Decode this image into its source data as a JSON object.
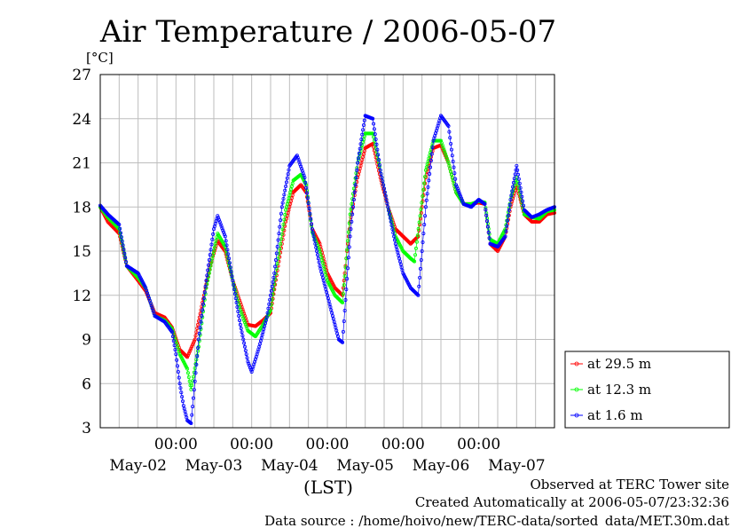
{
  "chart_data": {
    "type": "line",
    "title": "Air Temperature / 2006-05-07",
    "ylabel": "[°C]",
    "xlabel": "(LST)",
    "ylim": [
      3,
      27
    ],
    "yticks": [
      3,
      6,
      9,
      12,
      15,
      18,
      21,
      24,
      27
    ],
    "x_start_day": "May-02",
    "xlim_days": [
      0.0,
      6.0
    ],
    "time_tick_labels": [
      {
        "day": 1,
        "label": "00:00"
      },
      {
        "day": 2,
        "label": "00:00"
      },
      {
        "day": 3,
        "label": "00:00"
      },
      {
        "day": 4,
        "label": "00:00"
      },
      {
        "day": 5,
        "label": "00:00"
      }
    ],
    "date_labels": [
      {
        "day": 0.5,
        "label": "May-02"
      },
      {
        "day": 1.5,
        "label": "May-03"
      },
      {
        "day": 2.5,
        "label": "May-04"
      },
      {
        "day": 3.5,
        "label": "May-05"
      },
      {
        "day": 4.5,
        "label": "May-06"
      },
      {
        "day": 5.5,
        "label": "May-07"
      }
    ],
    "grid": true,
    "legend_position": "right",
    "series": [
      {
        "name": "at 29.5 m",
        "color": "#ff0000",
        "points": [
          [
            0.0,
            18.0
          ],
          [
            0.1,
            17.0
          ],
          [
            0.25,
            16.2
          ],
          [
            0.35,
            14.0
          ],
          [
            0.5,
            13.0
          ],
          [
            0.6,
            12.3
          ],
          [
            0.72,
            10.8
          ],
          [
            0.85,
            10.5
          ],
          [
            0.95,
            9.8
          ],
          [
            1.05,
            8.3
          ],
          [
            1.15,
            7.8
          ],
          [
            1.25,
            9.0
          ],
          [
            1.35,
            11.5
          ],
          [
            1.45,
            14.0
          ],
          [
            1.55,
            15.7
          ],
          [
            1.65,
            15.0
          ],
          [
            1.75,
            13.0
          ],
          [
            1.85,
            11.5
          ],
          [
            1.95,
            10.0
          ],
          [
            2.05,
            9.9
          ],
          [
            2.15,
            10.3
          ],
          [
            2.25,
            10.8
          ],
          [
            2.35,
            14.0
          ],
          [
            2.45,
            17.0
          ],
          [
            2.55,
            19.0
          ],
          [
            2.65,
            19.5
          ],
          [
            2.72,
            19.0
          ],
          [
            2.8,
            16.5
          ],
          [
            2.9,
            15.5
          ],
          [
            3.0,
            13.5
          ],
          [
            3.1,
            12.5
          ],
          [
            3.2,
            12.0
          ],
          [
            3.3,
            17.0
          ],
          [
            3.4,
            20.0
          ],
          [
            3.5,
            22.0
          ],
          [
            3.6,
            22.3
          ],
          [
            3.7,
            20.0
          ],
          [
            3.8,
            18.0
          ],
          [
            3.9,
            16.5
          ],
          [
            4.0,
            16.0
          ],
          [
            4.1,
            15.5
          ],
          [
            4.2,
            16.0
          ],
          [
            4.3,
            20.0
          ],
          [
            4.4,
            22.0
          ],
          [
            4.5,
            22.2
          ],
          [
            4.6,
            21.0
          ],
          [
            4.7,
            19.0
          ],
          [
            4.8,
            18.2
          ],
          [
            4.9,
            18.2
          ],
          [
            5.0,
            18.3
          ],
          [
            5.08,
            18.2
          ],
          [
            5.15,
            15.5
          ],
          [
            5.25,
            15.0
          ],
          [
            5.35,
            16.0
          ],
          [
            5.42,
            18.0
          ],
          [
            5.5,
            19.5
          ],
          [
            5.6,
            17.5
          ],
          [
            5.7,
            17.0
          ],
          [
            5.8,
            17.0
          ],
          [
            5.9,
            17.5
          ],
          [
            6.0,
            17.6
          ]
        ]
      },
      {
        "name": "at 12.3 m",
        "color": "#00ff00",
        "points": [
          [
            0.0,
            18.0
          ],
          [
            0.1,
            17.3
          ],
          [
            0.25,
            16.5
          ],
          [
            0.35,
            14.0
          ],
          [
            0.5,
            13.2
          ],
          [
            0.6,
            12.5
          ],
          [
            0.72,
            10.6
          ],
          [
            0.85,
            10.3
          ],
          [
            0.95,
            9.7
          ],
          [
            1.05,
            8.0
          ],
          [
            1.15,
            7.0
          ],
          [
            1.2,
            5.6
          ],
          [
            1.3,
            8.5
          ],
          [
            1.4,
            12.5
          ],
          [
            1.5,
            15.0
          ],
          [
            1.55,
            16.2
          ],
          [
            1.65,
            15.3
          ],
          [
            1.75,
            13.0
          ],
          [
            1.85,
            11.0
          ],
          [
            1.95,
            9.6
          ],
          [
            2.05,
            9.2
          ],
          [
            2.15,
            10.0
          ],
          [
            2.25,
            11.0
          ],
          [
            2.35,
            14.5
          ],
          [
            2.45,
            17.8
          ],
          [
            2.55,
            19.8
          ],
          [
            2.65,
            20.2
          ],
          [
            2.72,
            19.5
          ],
          [
            2.8,
            16.3
          ],
          [
            2.9,
            15.0
          ],
          [
            3.0,
            13.0
          ],
          [
            3.1,
            12.0
          ],
          [
            3.2,
            11.5
          ],
          [
            3.3,
            17.5
          ],
          [
            3.4,
            21.0
          ],
          [
            3.5,
            23.0
          ],
          [
            3.6,
            23.0
          ],
          [
            3.7,
            20.5
          ],
          [
            3.8,
            18.0
          ],
          [
            3.9,
            16.0
          ],
          [
            4.0,
            15.0
          ],
          [
            4.1,
            14.5
          ],
          [
            4.15,
            14.3
          ],
          [
            4.3,
            20.5
          ],
          [
            4.4,
            22.5
          ],
          [
            4.5,
            22.5
          ],
          [
            4.6,
            21.0
          ],
          [
            4.7,
            19.0
          ],
          [
            4.8,
            18.2
          ],
          [
            4.9,
            18.2
          ],
          [
            5.0,
            18.4
          ],
          [
            5.08,
            18.3
          ],
          [
            5.15,
            15.8
          ],
          [
            5.25,
            15.5
          ],
          [
            5.35,
            16.5
          ],
          [
            5.42,
            18.5
          ],
          [
            5.5,
            20.0
          ],
          [
            5.6,
            17.5
          ],
          [
            5.7,
            17.3
          ],
          [
            5.8,
            17.2
          ],
          [
            5.9,
            17.7
          ],
          [
            6.0,
            17.8
          ]
        ]
      },
      {
        "name": "at 1.6 m",
        "color": "#0000ff",
        "points": [
          [
            0.0,
            18.1
          ],
          [
            0.1,
            17.5
          ],
          [
            0.25,
            16.8
          ],
          [
            0.35,
            14.0
          ],
          [
            0.5,
            13.5
          ],
          [
            0.6,
            12.5
          ],
          [
            0.72,
            10.6
          ],
          [
            0.85,
            10.2
          ],
          [
            0.95,
            9.5
          ],
          [
            1.0,
            8.0
          ],
          [
            1.05,
            6.0
          ],
          [
            1.1,
            4.5
          ],
          [
            1.15,
            3.5
          ],
          [
            1.2,
            3.3
          ],
          [
            1.3,
            9.0
          ],
          [
            1.4,
            13.0
          ],
          [
            1.5,
            16.5
          ],
          [
            1.55,
            17.4
          ],
          [
            1.65,
            16.0
          ],
          [
            1.75,
            13.0
          ],
          [
            1.85,
            10.0
          ],
          [
            1.95,
            7.5
          ],
          [
            2.0,
            6.8
          ],
          [
            2.1,
            8.5
          ],
          [
            2.2,
            10.5
          ],
          [
            2.3,
            13.5
          ],
          [
            2.4,
            18.0
          ],
          [
            2.5,
            20.8
          ],
          [
            2.6,
            21.5
          ],
          [
            2.7,
            20.0
          ],
          [
            2.8,
            16.5
          ],
          [
            2.9,
            14.0
          ],
          [
            3.0,
            12.0
          ],
          [
            3.1,
            10.0
          ],
          [
            3.15,
            9.0
          ],
          [
            3.2,
            8.8
          ],
          [
            3.3,
            16.0
          ],
          [
            3.4,
            21.0
          ],
          [
            3.5,
            24.2
          ],
          [
            3.6,
            24.0
          ],
          [
            3.7,
            20.5
          ],
          [
            3.8,
            18.0
          ],
          [
            3.9,
            15.5
          ],
          [
            4.0,
            13.5
          ],
          [
            4.1,
            12.5
          ],
          [
            4.2,
            12.0
          ],
          [
            4.3,
            18.0
          ],
          [
            4.4,
            22.5
          ],
          [
            4.5,
            24.2
          ],
          [
            4.6,
            23.5
          ],
          [
            4.7,
            19.5
          ],
          [
            4.8,
            18.2
          ],
          [
            4.9,
            18.0
          ],
          [
            5.0,
            18.5
          ],
          [
            5.08,
            18.2
          ],
          [
            5.15,
            15.5
          ],
          [
            5.25,
            15.3
          ],
          [
            5.35,
            16.0
          ],
          [
            5.42,
            18.5
          ],
          [
            5.5,
            20.8
          ],
          [
            5.6,
            17.8
          ],
          [
            5.7,
            17.3
          ],
          [
            5.8,
            17.5
          ],
          [
            5.9,
            17.8
          ],
          [
            6.0,
            18.0
          ]
        ]
      }
    ],
    "footer": {
      "line1": "Observed at TERC Tower site",
      "line2": "Created Automatically at 2006-05-07/23:32:36",
      "line3": "Data source : /home/hoivo/new/TERC-data/sorted_data/MET.30m.dat"
    }
  }
}
